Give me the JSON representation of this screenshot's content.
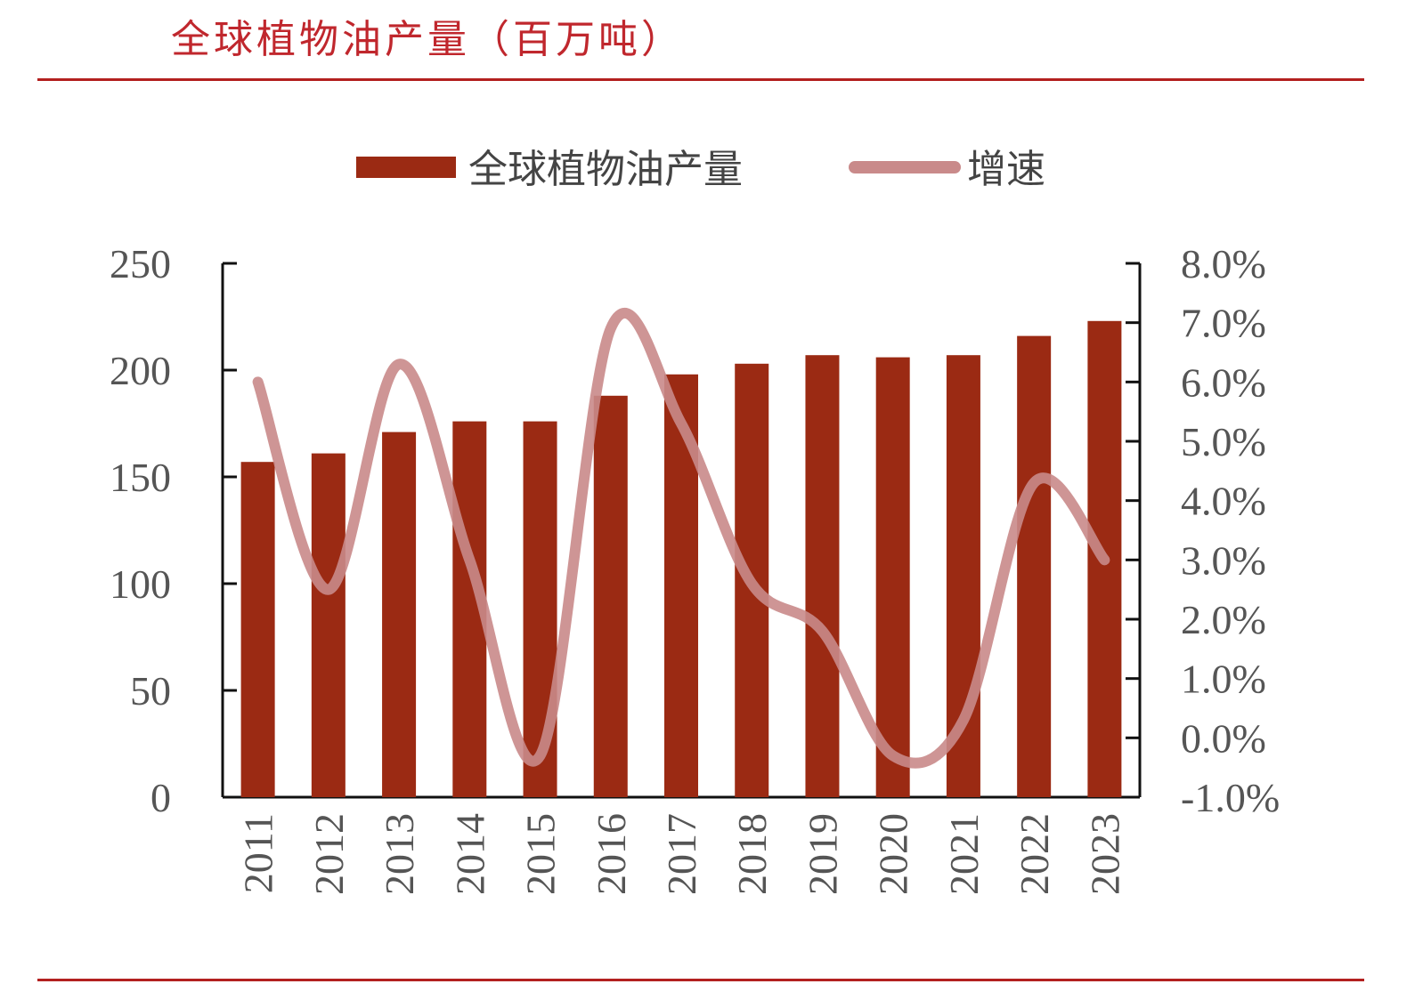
{
  "title": "全球植物油产量（百万吨）",
  "chart_data": {
    "type": "bar",
    "categories": [
      "2011",
      "2012",
      "2013",
      "2014",
      "2015",
      "2016",
      "2017",
      "2018",
      "2019",
      "2020",
      "2021",
      "2022",
      "2023"
    ],
    "series": [
      {
        "name": "全球植物油产量",
        "kind": "bar",
        "axis": "left",
        "color": "#9b2a13",
        "values": [
          157,
          161,
          171,
          176,
          176,
          188,
          198,
          203,
          207,
          206,
          207,
          216,
          223
        ]
      },
      {
        "name": "增速",
        "kind": "line",
        "axis": "right",
        "color": "#c98a8a",
        "values": [
          6.0,
          2.5,
          6.3,
          3.0,
          -0.3,
          6.9,
          5.3,
          2.6,
          1.8,
          -0.3,
          0.3,
          4.3,
          3.0
        ]
      }
    ],
    "y_left": {
      "min": 0,
      "max": 250,
      "ticks": [
        "0",
        "50",
        "100",
        "150",
        "200",
        "250"
      ]
    },
    "y_right": {
      "min": -1.0,
      "max": 8.0,
      "ticks": [
        "-1.0%",
        "0.0%",
        "1.0%",
        "2.0%",
        "3.0%",
        "4.0%",
        "5.0%",
        "6.0%",
        "7.0%",
        "8.0%"
      ]
    },
    "legend_position": "top-center",
    "grid": false
  }
}
